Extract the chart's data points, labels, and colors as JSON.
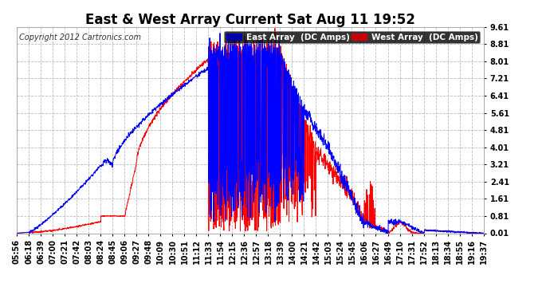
{
  "title": "East & West Array Current Sat Aug 11 19:52",
  "copyright": "Copyright 2012 Cartronics.com",
  "ylabel_ticks": [
    0.01,
    0.81,
    1.61,
    2.41,
    3.21,
    4.01,
    4.81,
    5.61,
    6.41,
    7.21,
    8.01,
    8.81,
    9.61
  ],
  "x_labels": [
    "05:56",
    "06:18",
    "06:39",
    "07:00",
    "07:21",
    "07:42",
    "08:03",
    "08:24",
    "08:45",
    "09:06",
    "09:27",
    "09:48",
    "10:09",
    "10:30",
    "10:51",
    "11:12",
    "11:33",
    "11:54",
    "12:15",
    "12:36",
    "12:57",
    "13:18",
    "13:39",
    "14:00",
    "14:21",
    "14:42",
    "15:03",
    "15:24",
    "15:45",
    "16:06",
    "16:27",
    "16:49",
    "17:10",
    "17:31",
    "17:52",
    "18:13",
    "18:34",
    "18:55",
    "19:16",
    "19:37"
  ],
  "east_legend": "East Array  (DC Amps)",
  "west_legend": "West Array  (DC Amps)",
  "east_color": "#0000ff",
  "west_color": "#ff0000",
  "legend_east_bg": "#0000aa",
  "legend_west_bg": "#cc0000",
  "background_color": "#ffffff",
  "grid_color": "#bbbbbb",
  "title_fontsize": 12,
  "tick_fontsize": 7,
  "ylim": [
    0.01,
    9.61
  ],
  "n_points": 2000
}
